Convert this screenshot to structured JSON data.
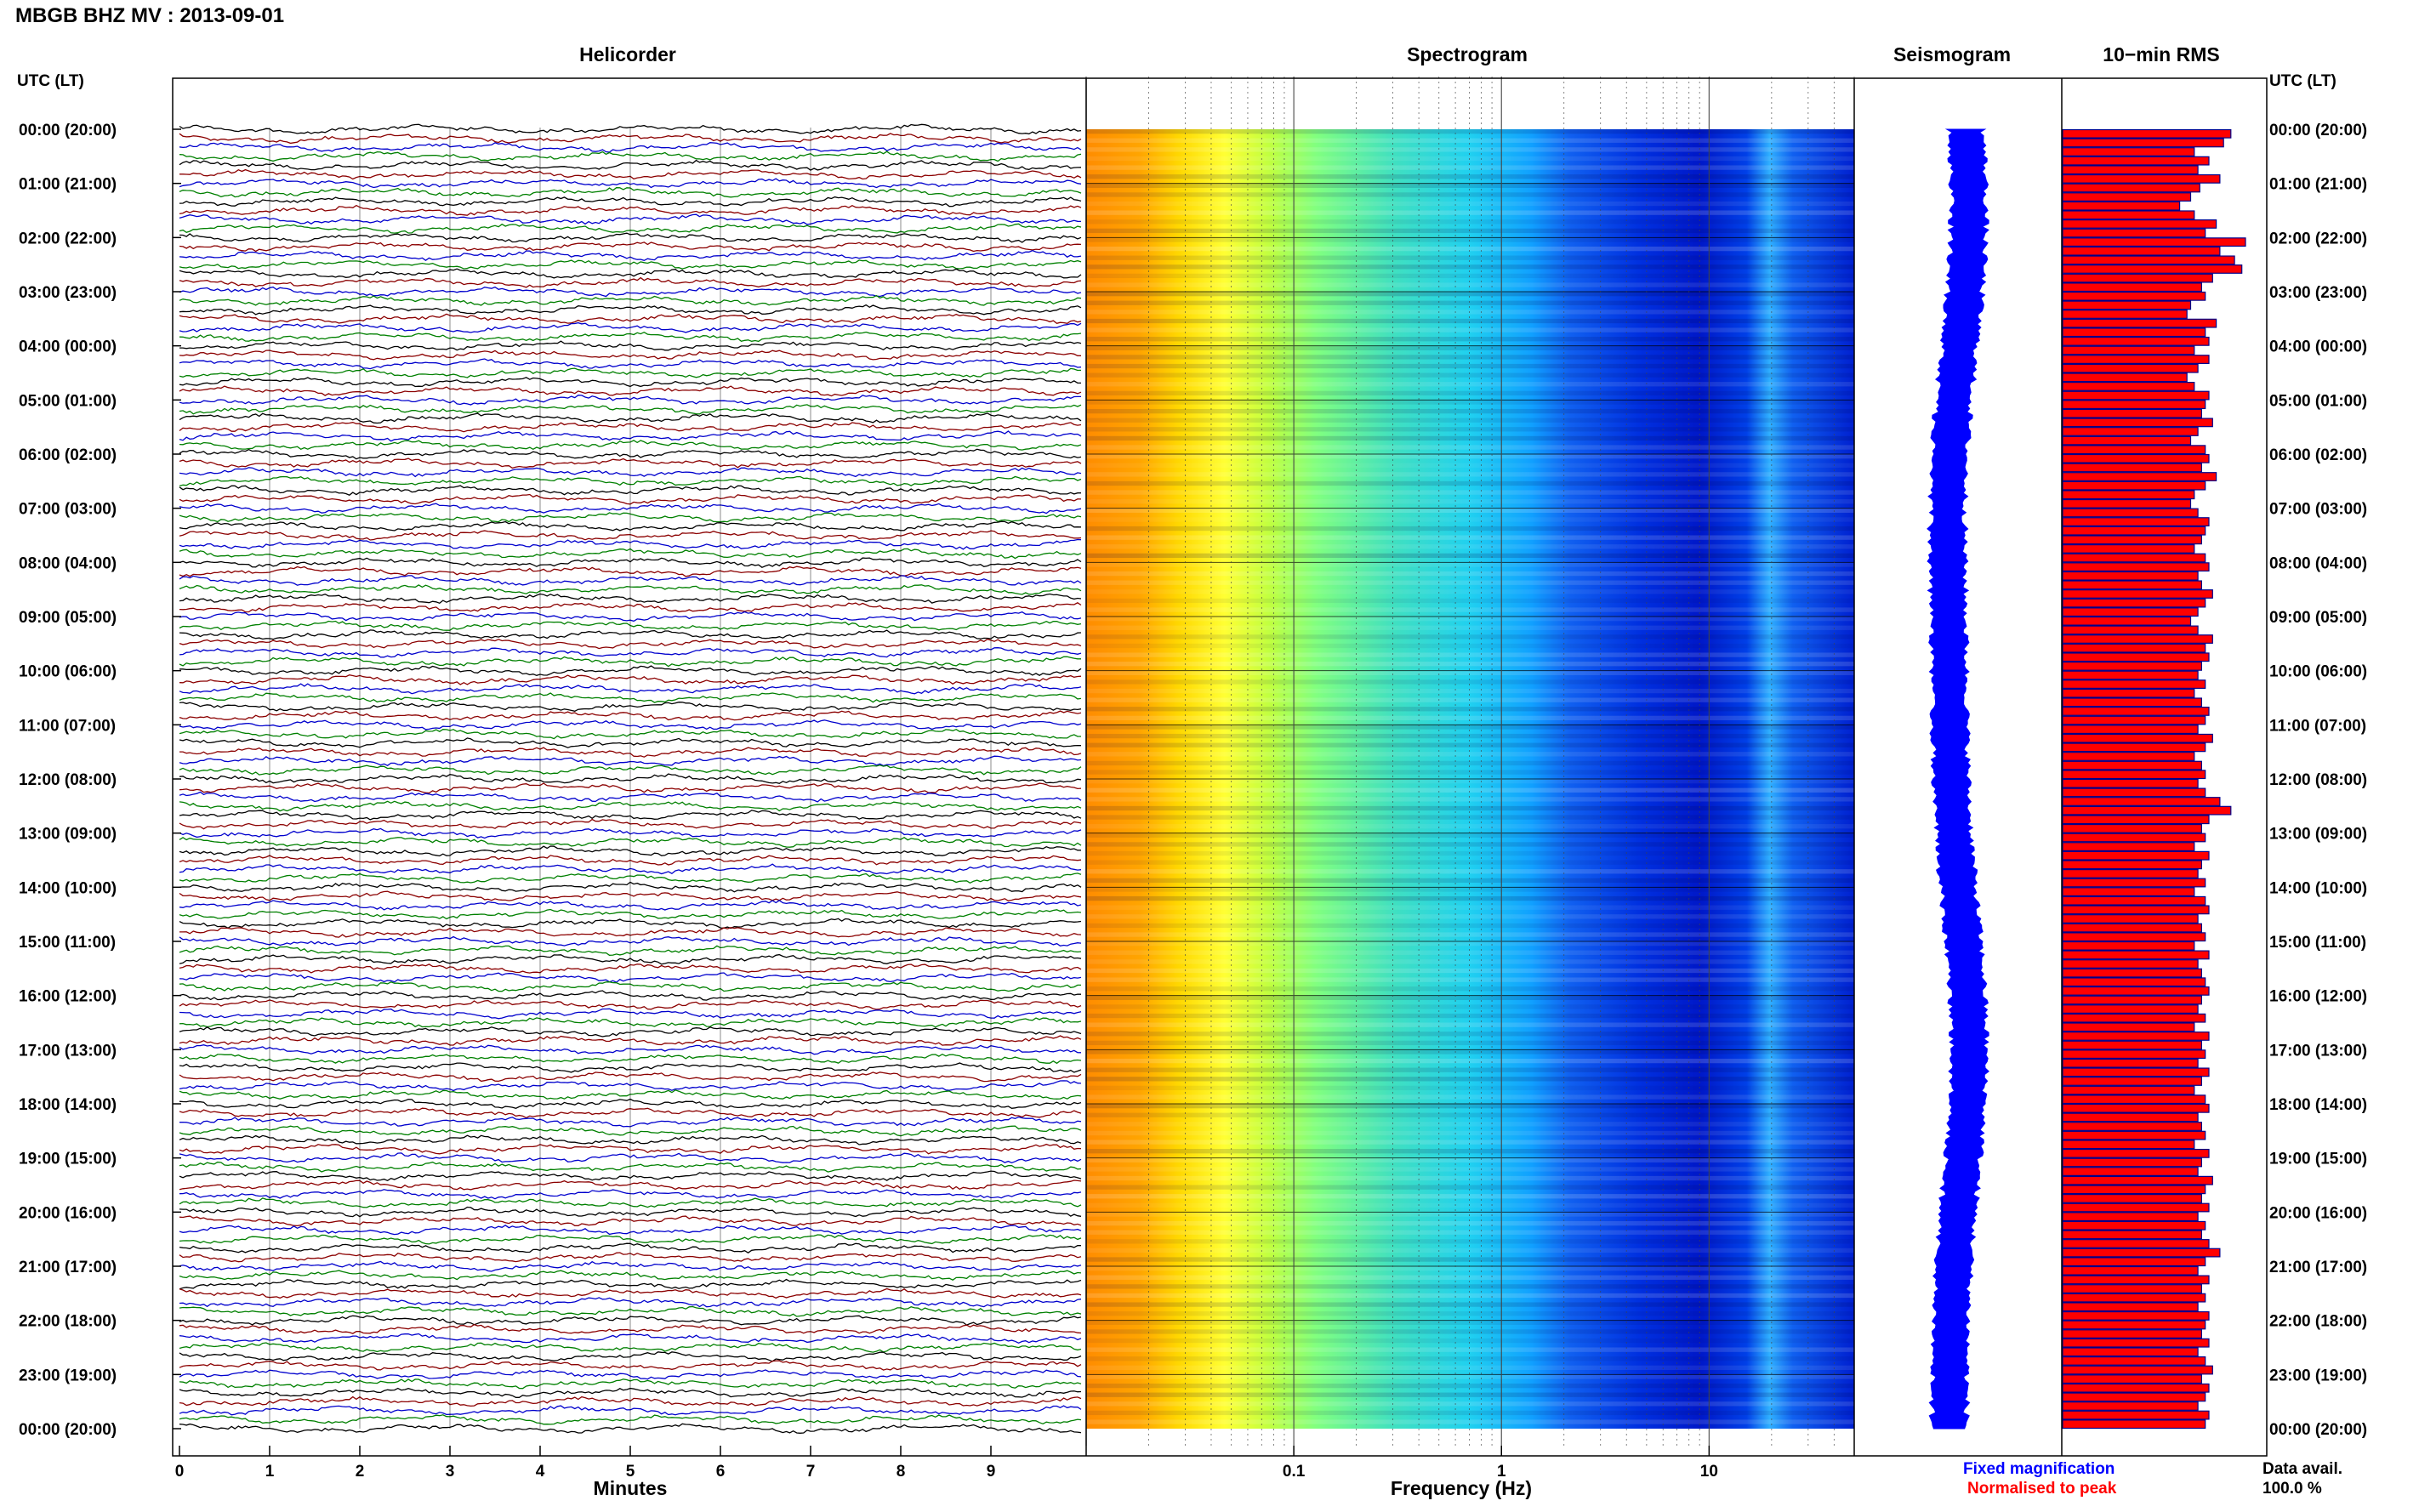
{
  "title": "MBGB BHZ MV : 2013-09-01",
  "axis_labels": {
    "time_left": "UTC (LT)",
    "time_right": "UTC (LT)",
    "minutes": "Minutes",
    "frequency": "Frequency (Hz)"
  },
  "panels": {
    "helicorder": "Helicorder",
    "spectrogram": "Spectrogram",
    "seismogram": "Seismogram",
    "rms": "10−min RMS"
  },
  "time_ticks": [
    "00:00 (20:00)",
    "01:00 (21:00)",
    "02:00 (22:00)",
    "03:00 (23:00)",
    "04:00 (00:00)",
    "05:00 (01:00)",
    "06:00 (02:00)",
    "07:00 (03:00)",
    "08:00 (04:00)",
    "09:00 (05:00)",
    "10:00 (06:00)",
    "11:00 (07:00)",
    "12:00 (08:00)",
    "13:00 (09:00)",
    "14:00 (10:00)",
    "15:00 (11:00)",
    "16:00 (12:00)",
    "17:00 (13:00)",
    "18:00 (14:00)",
    "19:00 (15:00)",
    "20:00 (16:00)",
    "21:00 (17:00)",
    "22:00 (18:00)",
    "23:00 (19:00)",
    "00:00 (20:00)"
  ],
  "minute_ticks": [
    "0",
    "1",
    "2",
    "3",
    "4",
    "5",
    "6",
    "7",
    "8",
    "9"
  ],
  "frequency_ticks": [
    "0.1",
    "1",
    "10"
  ],
  "legend": {
    "fixed": "Fixed magnification",
    "normalised": "Normalised to peak",
    "data_avail_label": "Data avail.",
    "data_avail_value": "100.0 %"
  },
  "colors": {
    "trace_cycle": [
      "#000000",
      "#8b0000",
      "#0000cd",
      "#008000"
    ],
    "seismogram": "#0000ff",
    "rms_fill": "#ff0000",
    "rms_edge": "#00008b",
    "legend_fixed": "#0000ff",
    "legend_normalised": "#ff0000"
  },
  "chart_data": [
    {
      "type": "line",
      "title": "Helicorder",
      "xlabel": "Minutes",
      "ylabel": "UTC (LT)",
      "xlim": [
        0,
        10
      ],
      "rows_per_hour": 6,
      "hours": 24,
      "grid": true
    },
    {
      "type": "heatmap",
      "title": "Spectrogram",
      "xlabel": "Frequency (Hz)",
      "xscale": "log",
      "xlim": [
        0.01,
        50
      ],
      "ylabel": "UTC (LT)",
      "grid": true
    },
    {
      "type": "line",
      "title": "Seismogram",
      "ylabel": "UTC (LT)"
    },
    {
      "type": "bar",
      "title": "10−min RMS",
      "orientation": "horizontal",
      "values": [
        0.92,
        0.88,
        0.72,
        0.8,
        0.74,
        0.86,
        0.75,
        0.7,
        0.64,
        0.72,
        0.84,
        0.78,
        1.0,
        0.86,
        0.94,
        0.98,
        0.82,
        0.76,
        0.78,
        0.7,
        0.68,
        0.84,
        0.78,
        0.8,
        0.72,
        0.8,
        0.74,
        0.68,
        0.72,
        0.8,
        0.78,
        0.76,
        0.82,
        0.74,
        0.7,
        0.78,
        0.8,
        0.76,
        0.84,
        0.78,
        0.72,
        0.7,
        0.74,
        0.8,
        0.78,
        0.76,
        0.72,
        0.78,
        0.8,
        0.74,
        0.76,
        0.82,
        0.78,
        0.74,
        0.7,
        0.74,
        0.82,
        0.78,
        0.8,
        0.76,
        0.74,
        0.78,
        0.72,
        0.76,
        0.8,
        0.78,
        0.74,
        0.82,
        0.78,
        0.72,
        0.76,
        0.78,
        0.74,
        0.78,
        0.86,
        0.92,
        0.8,
        0.76,
        0.78,
        0.72,
        0.8,
        0.76,
        0.74,
        0.78,
        0.72,
        0.78,
        0.8,
        0.74,
        0.76,
        0.78,
        0.72,
        0.8,
        0.74,
        0.76,
        0.78,
        0.8,
        0.76,
        0.74,
        0.78,
        0.72,
        0.8,
        0.76,
        0.78,
        0.74,
        0.8,
        0.76,
        0.72,
        0.78,
        0.8,
        0.74,
        0.76,
        0.78,
        0.72,
        0.8,
        0.76,
        0.74,
        0.82,
        0.78,
        0.76,
        0.8,
        0.74,
        0.78,
        0.76,
        0.8,
        0.86,
        0.78,
        0.74,
        0.8,
        0.76,
        0.78,
        0.74,
        0.8,
        0.78,
        0.76,
        0.8,
        0.74,
        0.78,
        0.82,
        0.76,
        0.8,
        0.78,
        0.74,
        0.8,
        0.78
      ]
    }
  ]
}
